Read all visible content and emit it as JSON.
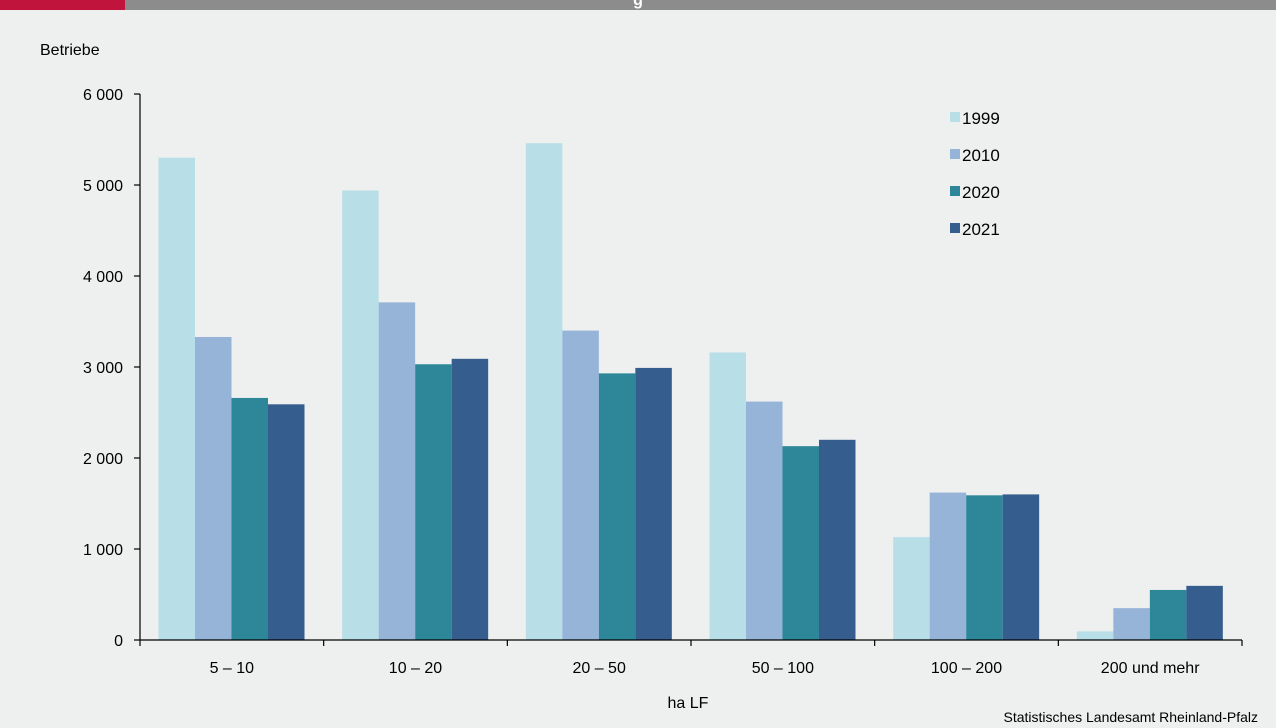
{
  "header": {
    "title": "g"
  },
  "chart_data": {
    "type": "bar",
    "categories": [
      "5 – 10",
      "10 – 20",
      "20 – 50",
      "50 – 100",
      "100 – 200",
      "200 und mehr"
    ],
    "series": [
      {
        "name": "1999",
        "color": "#b8dfe8",
        "values": [
          5300,
          4940,
          5460,
          3160,
          1130,
          95
        ]
      },
      {
        "name": "2010",
        "color": "#96b3d8",
        "values": [
          3330,
          3710,
          3400,
          2620,
          1620,
          350
        ]
      },
      {
        "name": "2020",
        "color": "#2d8799",
        "values": [
          2660,
          3030,
          2930,
          2130,
          1590,
          550
        ]
      },
      {
        "name": "2021",
        "color": "#355e8f",
        "values": [
          2590,
          3090,
          2990,
          2200,
          1600,
          595
        ]
      }
    ],
    "ylim": [
      0,
      6000
    ],
    "yticks": [
      0,
      1000,
      2000,
      3000,
      4000,
      5000,
      6000
    ],
    "ytick_labels": [
      "0",
      "1 000",
      "2 000",
      "3 000",
      "4 000",
      "5 000",
      "6 000"
    ],
    "ylabel": "Betriebe",
    "xlabel": "ha LF",
    "legend_position": "top-right",
    "grid": false
  },
  "footer": {
    "source": "Statistisches Landesamt Rheinland-Pfalz"
  }
}
